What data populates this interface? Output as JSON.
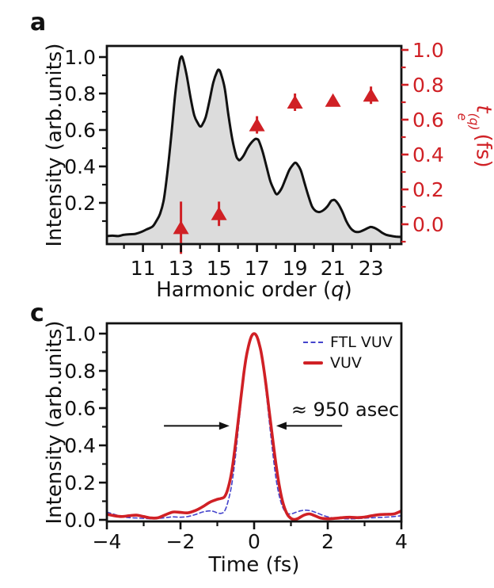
{
  "figure": {
    "background": "#ffffff",
    "accent_red": "#d02025",
    "accent_blue": "#4444cc",
    "spectrum_fill": "#dcdcdc",
    "ink": "#111111"
  },
  "panel_a": {
    "panel_label": "a",
    "ylabel_left": "Intensity (arb.units)",
    "ylabel_right": {
      "base": "t",
      "sup": "(q)",
      "sub": "e",
      "unit": "(fs)"
    },
    "xlabel": {
      "pre": "Harmonic order (",
      "italic": "q",
      "post": ")"
    }
  },
  "panel_c": {
    "panel_label": "c",
    "ylabel": "Intensity (arb.units)",
    "xlabel": "Time (fs)",
    "legend": [
      {
        "label": "FTL VUV",
        "color": "#4444cc",
        "style": "dashed"
      },
      {
        "label": "VUV",
        "color": "#d02025",
        "style": "solid"
      }
    ],
    "annotation_text": "≈  950 asec"
  },
  "chart_data": [
    {
      "id": "panel_a",
      "type": "area",
      "title": "",
      "xlabel": "Harmonic order (q)",
      "ylabel_left": "Intensity (arb.units)",
      "ylabel_right": "t_e^(q) (fs)",
      "xlim": [
        9.1,
        24.6
      ],
      "ylim_left": [
        -0.03,
        1.06
      ],
      "ylim_right": [
        -0.11,
        1.02
      ],
      "grid": false,
      "x_major_ticks": {
        "values": [
          11,
          13,
          15,
          17,
          19,
          21,
          23
        ],
        "labels": [
          "11",
          "13",
          "15",
          "17",
          "19",
          "21",
          "23"
        ]
      },
      "x_minor_ticks": [
        10,
        12,
        14,
        16,
        18,
        20,
        22,
        24
      ],
      "y_left_major_ticks": {
        "values": [
          0.2,
          0.4,
          0.6,
          0.8,
          1.0
        ],
        "labels": [
          "0.2",
          "0.4",
          "0.6",
          "0.8",
          "1.0"
        ]
      },
      "y_left_minor_ticks": [
        0.1,
        0.3,
        0.5,
        0.7,
        0.9
      ],
      "y_right_major_ticks": {
        "values": [
          0.0,
          0.2,
          0.4,
          0.6,
          0.8,
          1.0
        ],
        "labels": [
          "0.0",
          "0.2",
          "0.4",
          "0.6",
          "0.8",
          "1.0"
        ]
      },
      "y_right_minor_ticks": [
        -0.1,
        0.1,
        0.3,
        0.5,
        0.7,
        0.9
      ],
      "spectrum_points": [
        [
          9.1,
          0.018
        ],
        [
          9.4,
          0.02
        ],
        [
          9.7,
          0.018
        ],
        [
          10.0,
          0.025
        ],
        [
          10.3,
          0.028
        ],
        [
          10.6,
          0.03
        ],
        [
          10.9,
          0.04
        ],
        [
          11.2,
          0.055
        ],
        [
          11.5,
          0.07
        ],
        [
          11.7,
          0.1
        ],
        [
          11.9,
          0.14
        ],
        [
          12.1,
          0.22
        ],
        [
          12.3,
          0.38
        ],
        [
          12.5,
          0.58
        ],
        [
          12.7,
          0.8
        ],
        [
          12.9,
          0.96
        ],
        [
          13.0,
          1.0
        ],
        [
          13.1,
          0.99
        ],
        [
          13.3,
          0.9
        ],
        [
          13.5,
          0.78
        ],
        [
          13.7,
          0.68
        ],
        [
          13.9,
          0.635
        ],
        [
          14.0,
          0.62
        ],
        [
          14.1,
          0.625
        ],
        [
          14.3,
          0.67
        ],
        [
          14.5,
          0.76
        ],
        [
          14.7,
          0.86
        ],
        [
          14.9,
          0.92
        ],
        [
          15.0,
          0.93
        ],
        [
          15.1,
          0.91
        ],
        [
          15.3,
          0.83
        ],
        [
          15.5,
          0.68
        ],
        [
          15.7,
          0.55
        ],
        [
          15.9,
          0.46
        ],
        [
          16.0,
          0.44
        ],
        [
          16.1,
          0.435
        ],
        [
          16.3,
          0.46
        ],
        [
          16.5,
          0.5
        ],
        [
          16.7,
          0.53
        ],
        [
          16.9,
          0.55
        ],
        [
          17.0,
          0.55
        ],
        [
          17.1,
          0.54
        ],
        [
          17.3,
          0.48
        ],
        [
          17.5,
          0.4
        ],
        [
          17.7,
          0.32
        ],
        [
          17.9,
          0.27
        ],
        [
          18.0,
          0.25
        ],
        [
          18.1,
          0.25
        ],
        [
          18.3,
          0.28
        ],
        [
          18.5,
          0.33
        ],
        [
          18.7,
          0.38
        ],
        [
          18.9,
          0.41
        ],
        [
          19.0,
          0.42
        ],
        [
          19.1,
          0.415
        ],
        [
          19.3,
          0.38
        ],
        [
          19.5,
          0.31
        ],
        [
          19.7,
          0.24
        ],
        [
          19.9,
          0.18
        ],
        [
          20.1,
          0.155
        ],
        [
          20.3,
          0.15
        ],
        [
          20.5,
          0.16
        ],
        [
          20.7,
          0.18
        ],
        [
          20.9,
          0.21
        ],
        [
          21.0,
          0.215
        ],
        [
          21.1,
          0.215
        ],
        [
          21.3,
          0.19
        ],
        [
          21.5,
          0.15
        ],
        [
          21.7,
          0.1
        ],
        [
          21.9,
          0.065
        ],
        [
          22.1,
          0.045
        ],
        [
          22.3,
          0.04
        ],
        [
          22.5,
          0.045
        ],
        [
          22.7,
          0.055
        ],
        [
          22.9,
          0.065
        ],
        [
          23.0,
          0.068
        ],
        [
          23.2,
          0.062
        ],
        [
          23.4,
          0.05
        ],
        [
          23.6,
          0.035
        ],
        [
          23.8,
          0.025
        ],
        [
          24.0,
          0.02
        ],
        [
          24.3,
          0.015
        ],
        [
          24.6,
          0.013
        ]
      ],
      "emission_times": {
        "marker": "triangle-up",
        "color": "#d02025",
        "q": [
          13,
          15,
          17,
          19,
          21,
          23
        ],
        "t_fs": [
          -0.02,
          0.06,
          0.57,
          0.7,
          0.71,
          0.74
        ],
        "err_fs": [
          0.15,
          0.07,
          0.05,
          0.05,
          0.02,
          0.05
        ]
      }
    },
    {
      "id": "panel_c",
      "type": "line",
      "title": "",
      "xlabel": "Time (fs)",
      "ylabel": "Intensity (arb.units)",
      "xlim": [
        -4,
        4
      ],
      "ylim": [
        -0.01,
        1.06
      ],
      "grid": false,
      "legend_position": "upper right",
      "x_major_ticks": {
        "values": [
          -4,
          -2,
          0,
          2,
          4
        ],
        "labels": [
          "−4",
          "−2",
          "0",
          "2",
          "4"
        ]
      },
      "x_minor_ticks": [
        -3,
        -1,
        1,
        3
      ],
      "y_major_ticks": {
        "values": [
          0.0,
          0.2,
          0.4,
          0.6,
          0.8,
          1.0
        ],
        "labels": [
          "0.0",
          "0.2",
          "0.4",
          "0.6",
          "0.8",
          "1.0"
        ]
      },
      "y_minor_ticks": [
        0.1,
        0.3,
        0.5,
        0.7,
        0.9
      ],
      "series": [
        {
          "name": "FTL VUV",
          "color": "#4444cc",
          "style": "dashed",
          "width": 1.6,
          "points": [
            [
              -4.0,
              0.042
            ],
            [
              -3.8,
              0.03
            ],
            [
              -3.6,
              0.018
            ],
            [
              -3.4,
              0.012
            ],
            [
              -3.2,
              0.01
            ],
            [
              -3.0,
              0.008
            ],
            [
              -2.8,
              0.006
            ],
            [
              -2.6,
              0.008
            ],
            [
              -2.4,
              0.012
            ],
            [
              -2.2,
              0.016
            ],
            [
              -2.0,
              0.014
            ],
            [
              -1.8,
              0.018
            ],
            [
              -1.6,
              0.028
            ],
            [
              -1.4,
              0.042
            ],
            [
              -1.2,
              0.048
            ],
            [
              -1.1,
              0.045
            ],
            [
              -1.0,
              0.038
            ],
            [
              -0.9,
              0.035
            ],
            [
              -0.8,
              0.048
            ],
            [
              -0.7,
              0.105
            ],
            [
              -0.6,
              0.2
            ],
            [
              -0.5,
              0.355
            ],
            [
              -0.4,
              0.545
            ],
            [
              -0.3,
              0.73
            ],
            [
              -0.2,
              0.875
            ],
            [
              -0.1,
              0.965
            ],
            [
              0,
              1.0
            ],
            [
              0.1,
              0.965
            ],
            [
              0.2,
              0.875
            ],
            [
              0.3,
              0.73
            ],
            [
              0.4,
              0.55
            ],
            [
              0.5,
              0.37
            ],
            [
              0.6,
              0.215
            ],
            [
              0.7,
              0.115
            ],
            [
              0.8,
              0.058
            ],
            [
              0.9,
              0.035
            ],
            [
              1.0,
              0.032
            ],
            [
              1.1,
              0.038
            ],
            [
              1.25,
              0.048
            ],
            [
              1.4,
              0.052
            ],
            [
              1.55,
              0.048
            ],
            [
              1.7,
              0.038
            ],
            [
              1.9,
              0.022
            ],
            [
              2.1,
              0.012
            ],
            [
              2.3,
              0.008
            ],
            [
              2.5,
              0.006
            ],
            [
              2.7,
              0.006
            ],
            [
              2.9,
              0.008
            ],
            [
              3.1,
              0.01
            ],
            [
              3.3,
              0.012
            ],
            [
              3.5,
              0.014
            ],
            [
              3.7,
              0.016
            ],
            [
              3.9,
              0.02
            ],
            [
              4.0,
              0.022
            ]
          ]
        },
        {
          "name": "VUV",
          "color": "#d02025",
          "style": "solid",
          "width": 3.6,
          "points": [
            [
              -4.0,
              0.03
            ],
            [
              -3.8,
              0.022
            ],
            [
              -3.6,
              0.018
            ],
            [
              -3.4,
              0.022
            ],
            [
              -3.2,
              0.025
            ],
            [
              -3.0,
              0.018
            ],
            [
              -2.8,
              0.01
            ],
            [
              -2.6,
              0.012
            ],
            [
              -2.4,
              0.028
            ],
            [
              -2.2,
              0.042
            ],
            [
              -2.0,
              0.04
            ],
            [
              -1.8,
              0.038
            ],
            [
              -1.6,
              0.05
            ],
            [
              -1.4,
              0.07
            ],
            [
              -1.2,
              0.095
            ],
            [
              -1.0,
              0.11
            ],
            [
              -0.9,
              0.115
            ],
            [
              -0.8,
              0.125
            ],
            [
              -0.7,
              0.175
            ],
            [
              -0.6,
              0.27
            ],
            [
              -0.5,
              0.42
            ],
            [
              -0.4,
              0.585
            ],
            [
              -0.3,
              0.755
            ],
            [
              -0.25,
              0.83
            ],
            [
              -0.2,
              0.89
            ],
            [
              -0.15,
              0.935
            ],
            [
              -0.1,
              0.972
            ],
            [
              -0.05,
              0.993
            ],
            [
              0,
              1.0
            ],
            [
              0.05,
              0.993
            ],
            [
              0.1,
              0.972
            ],
            [
              0.15,
              0.935
            ],
            [
              0.2,
              0.89
            ],
            [
              0.3,
              0.76
            ],
            [
              0.4,
              0.6
            ],
            [
              0.5,
              0.44
            ],
            [
              0.6,
              0.29
            ],
            [
              0.7,
              0.165
            ],
            [
              0.8,
              0.08
            ],
            [
              0.9,
              0.03
            ],
            [
              1.0,
              0.008
            ],
            [
              1.1,
              0.002
            ],
            [
              1.2,
              0.008
            ],
            [
              1.35,
              0.025
            ],
            [
              1.5,
              0.032
            ],
            [
              1.65,
              0.022
            ],
            [
              1.8,
              0.01
            ],
            [
              2.0,
              0.006
            ],
            [
              2.2,
              0.008
            ],
            [
              2.4,
              0.012
            ],
            [
              2.6,
              0.014
            ],
            [
              2.8,
              0.012
            ],
            [
              3.0,
              0.015
            ],
            [
              3.2,
              0.022
            ],
            [
              3.4,
              0.028
            ],
            [
              3.6,
              0.03
            ],
            [
              3.8,
              0.032
            ],
            [
              4.0,
              0.048
            ]
          ]
        }
      ],
      "annotation": {
        "text": "≈  950 asec",
        "level": 0.505
      },
      "arrows": [
        {
          "x_start_fs": -2.45,
          "x_end_fs": -0.67,
          "y": 0.505,
          "direction": "right"
        },
        {
          "x_start_fs": 2.39,
          "x_end_fs": 0.6,
          "y": 0.505,
          "direction": "left"
        }
      ]
    }
  ]
}
